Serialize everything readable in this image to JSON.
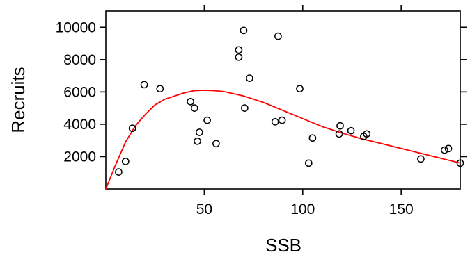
{
  "chart_data": {
    "type": "scatter",
    "title": "",
    "xlabel": "SSB",
    "ylabel": "Recruits",
    "xlim": [
      0,
      180
    ],
    "ylim": [
      0,
      11000
    ],
    "grid": false,
    "x_ticks": [
      50,
      100,
      150
    ],
    "x_tick_labels": [
      "50",
      "100",
      "150"
    ],
    "y_ticks": [
      2000,
      4000,
      6000,
      8000,
      10000
    ],
    "y_tick_labels": [
      "2000",
      "4000",
      "6000",
      "8000",
      "10000"
    ],
    "series": [
      {
        "type": "scatter",
        "marker": "open-circle",
        "color": "#000000",
        "points": [
          [
            6.5,
            1050
          ],
          [
            10,
            1700
          ],
          [
            13.5,
            3750
          ],
          [
            19.5,
            6450
          ],
          [
            27.5,
            6200
          ],
          [
            43,
            5400
          ],
          [
            45,
            5000
          ],
          [
            46.5,
            2950
          ],
          [
            47.5,
            3500
          ],
          [
            51.5,
            4250
          ],
          [
            56,
            2800
          ],
          [
            67.5,
            8600
          ],
          [
            67.5,
            8150
          ],
          [
            70,
            9800
          ],
          [
            70.5,
            5000
          ],
          [
            73,
            6850
          ],
          [
            86,
            4150
          ],
          [
            87.5,
            9450
          ],
          [
            89.5,
            4250
          ],
          [
            98.5,
            6200
          ],
          [
            103,
            1600
          ],
          [
            105,
            3150
          ],
          [
            118.5,
            3400
          ],
          [
            119,
            3900
          ],
          [
            124.5,
            3600
          ],
          [
            131,
            3250
          ],
          [
            132.5,
            3400
          ],
          [
            160,
            1850
          ],
          [
            172,
            2400
          ],
          [
            174,
            2500
          ],
          [
            180,
            1600
          ]
        ]
      },
      {
        "type": "line",
        "color": "#ff0000",
        "points": [
          [
            0,
            0
          ],
          [
            5,
            1500
          ],
          [
            10,
            2900
          ],
          [
            15,
            3900
          ],
          [
            20,
            4600
          ],
          [
            25,
            5200
          ],
          [
            30,
            5550
          ],
          [
            35,
            5750
          ],
          [
            40,
            5950
          ],
          [
            45,
            6080
          ],
          [
            50,
            6100
          ],
          [
            55,
            6080
          ],
          [
            60,
            6020
          ],
          [
            70,
            5750
          ],
          [
            80,
            5350
          ],
          [
            90,
            4850
          ],
          [
            100,
            4350
          ],
          [
            110,
            3850
          ],
          [
            120,
            3450
          ],
          [
            130,
            3100
          ],
          [
            140,
            2800
          ],
          [
            150,
            2500
          ],
          [
            160,
            2200
          ],
          [
            170,
            1900
          ],
          [
            180,
            1600
          ]
        ]
      }
    ]
  }
}
